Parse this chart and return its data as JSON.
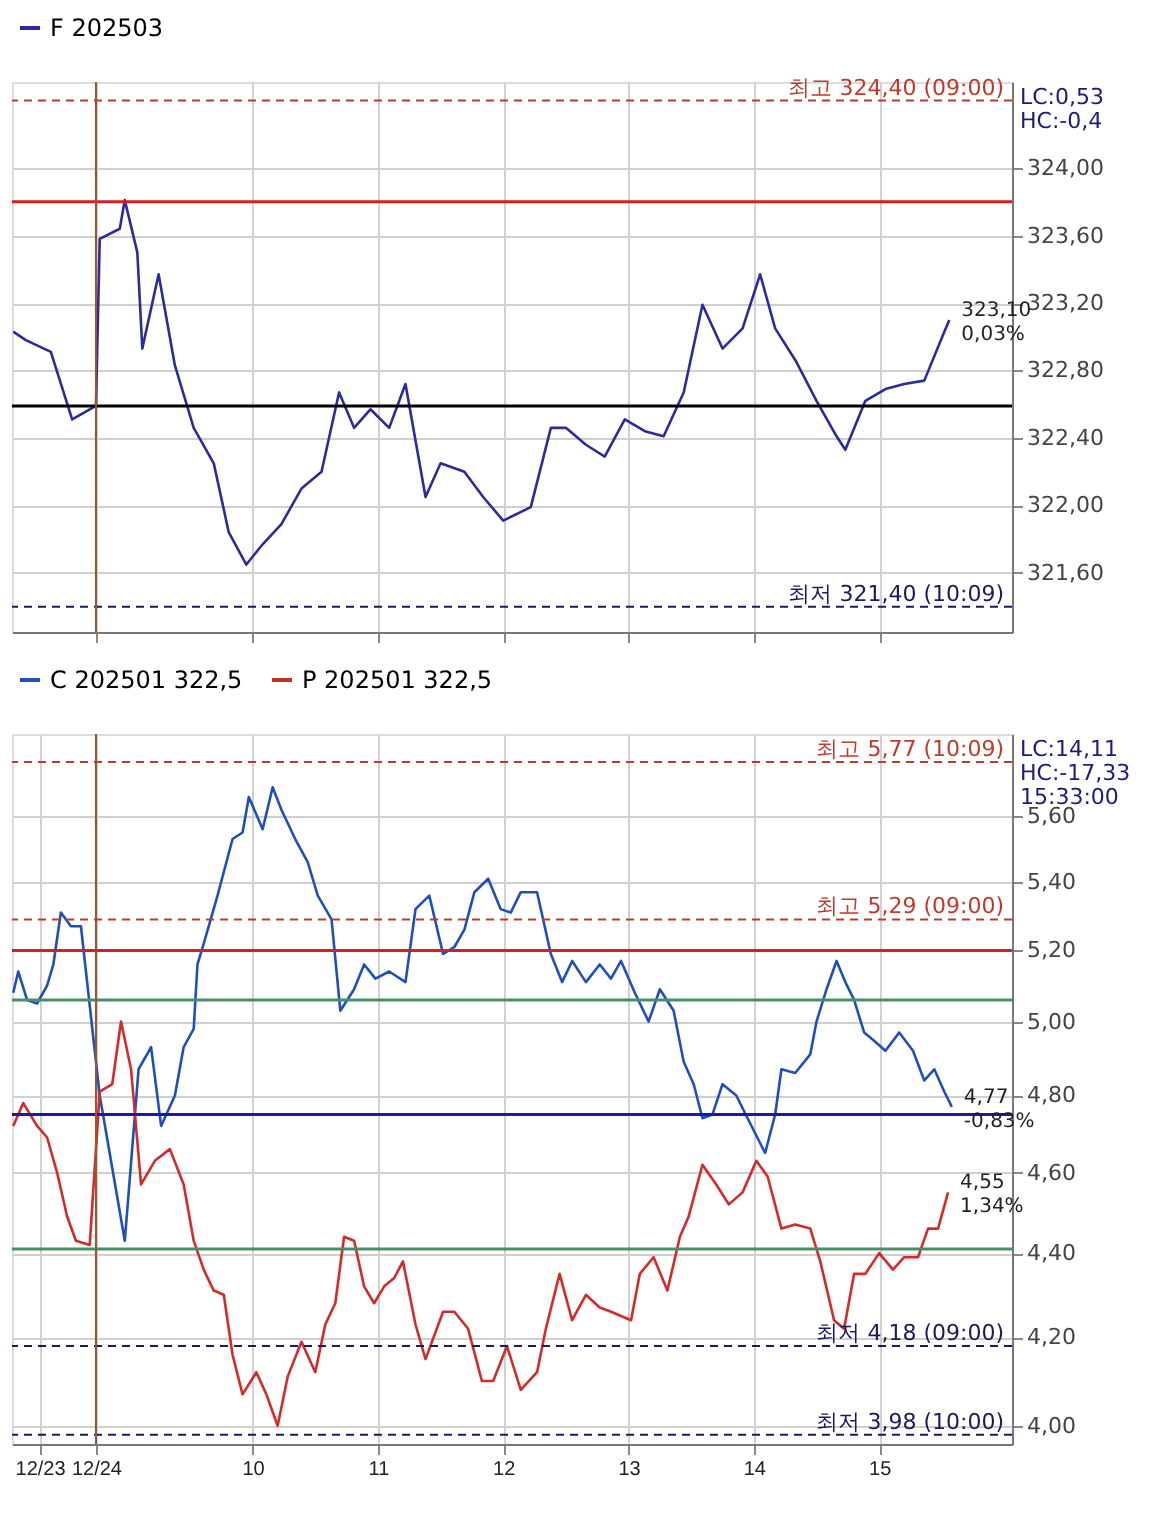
{
  "chart_data": [
    {
      "type": "line",
      "xlim": [
        8.08,
        16.06
      ],
      "xticks": [
        {
          "value": 8.75,
          "label": null
        },
        {
          "value": 10,
          "label": null
        },
        {
          "value": 11,
          "label": null
        },
        {
          "value": 12,
          "label": null
        },
        {
          "value": 13,
          "label": null
        },
        {
          "value": 14,
          "label": null
        },
        {
          "value": 15,
          "label": null
        }
      ],
      "ylim": [
        321.25,
        324.51
      ],
      "yticks": [
        {
          "value": 321.6,
          "label": "321,60"
        },
        {
          "value": 322.0,
          "label": "322,00"
        },
        {
          "value": 322.4,
          "label": "322,40"
        },
        {
          "value": 322.8,
          "label": "322,80"
        },
        {
          "value": 323.2,
          "label": "323,20"
        },
        {
          "value": 323.6,
          "label": "323,60"
        },
        {
          "value": 324.0,
          "label": "324,00"
        }
      ],
      "grid": true,
      "legend": "top left",
      "tick_labels": "y",
      "series": [
        {
          "name": "F 202503",
          "color": "#2b2b9f",
          "x": [
            8.09,
            8.19,
            8.39,
            8.56,
            8.75,
            8.78,
            8.94,
            8.98,
            9.08,
            9.12,
            9.25,
            9.38,
            9.53,
            9.69,
            9.81,
            9.95,
            10.08,
            10.23,
            10.39,
            10.55,
            10.69,
            10.81,
            10.94,
            11.09,
            11.22,
            11.38,
            11.5,
            11.69,
            11.84,
            12.0,
            12.22,
            12.38,
            12.5,
            12.66,
            12.81,
            12.97,
            13.13,
            13.28,
            13.44,
            13.59,
            13.75,
            13.91,
            14.05,
            14.17,
            14.34,
            14.5,
            14.66,
            14.73,
            14.89,
            15.05,
            15.2,
            15.36,
            15.52,
            15.56
          ],
          "values": [
            323.03,
            322.98,
            322.91,
            322.51,
            322.59,
            323.58,
            323.64,
            323.81,
            323.5,
            322.93,
            323.37,
            322.83,
            322.46,
            322.25,
            321.84,
            321.65,
            321.77,
            321.89,
            322.1,
            322.2,
            322.67,
            322.46,
            322.57,
            322.46,
            322.72,
            322.05,
            322.25,
            322.2,
            322.05,
            321.91,
            321.99,
            322.46,
            322.46,
            322.36,
            322.29,
            322.51,
            322.44,
            322.41,
            322.67,
            323.19,
            322.93,
            323.05,
            323.37,
            323.05,
            322.85,
            322.62,
            322.41,
            322.33,
            322.62,
            322.69,
            322.72,
            322.74,
            323.03,
            323.1
          ]
        }
      ],
      "ref_lines": [
        {
          "axis": "y",
          "value": 324.4,
          "label": "최고 324,40 (09:00)",
          "color": "#c0392b",
          "line_style": "dashed"
        },
        {
          "axis": "y",
          "value": 323.8,
          "color": "#d42020"
        },
        {
          "axis": "y",
          "value": 322.59,
          "color": "#000000"
        },
        {
          "axis": "y",
          "value": 321.4,
          "label": "최저 321,40 (10:09)",
          "color": "#1a1a60",
          "line_style": "dashed"
        },
        {
          "axis": "x",
          "value": 8.75,
          "color": "#a0522d"
        }
      ],
      "annotations": [
        "LC:0,53",
        "HC:-0,4",
        {
          "text": "323,10",
          "x": 15.56,
          "y": 323.1
        },
        {
          "text": "0,03%",
          "x": 15.56,
          "y": 323.1
        }
      ]
    },
    {
      "type": "line",
      "xlim": [
        8.08,
        16.06
      ],
      "xticks": [
        {
          "value": 8.3,
          "label": "12/23"
        },
        {
          "value": 8.75,
          "label": "12/24"
        },
        10,
        11,
        12,
        13,
        14,
        15
      ],
      "ylim": [
        3.96,
        5.86
      ],
      "log": "y",
      "yticks": [
        {
          "value": 4.0,
          "label": "4,00"
        },
        {
          "value": 4.2,
          "label": "4,20"
        },
        {
          "value": 4.4,
          "label": "4,40"
        },
        {
          "value": 4.6,
          "label": "4,60"
        },
        {
          "value": 4.8,
          "label": "4,80"
        },
        {
          "value": 5.0,
          "label": "5,00"
        },
        {
          "value": 5.2,
          "label": "5,20"
        },
        {
          "value": 5.4,
          "label": "5,40"
        },
        {
          "value": 5.6,
          "label": "5,60"
        }
      ],
      "grid": true,
      "legend": "top left",
      "series": [
        {
          "name": "C 202501 322,5",
          "color": "#1f4fbf",
          "x": [
            8.09,
            8.13,
            8.2,
            8.28,
            8.36,
            8.41,
            8.47,
            8.55,
            8.63,
            8.78,
            8.98,
            9.09,
            9.19,
            9.27,
            9.38,
            9.45,
            9.53,
            9.56,
            9.61,
            9.72,
            9.84,
            9.92,
            9.97,
            10.08,
            10.16,
            10.23,
            10.34,
            10.44,
            10.52,
            10.63,
            10.7,
            10.81,
            10.89,
            10.98,
            11.09,
            11.22,
            11.3,
            11.41,
            11.52,
            11.61,
            11.69,
            11.77,
            11.88,
            11.98,
            12.06,
            12.14,
            12.27,
            12.38,
            12.47,
            12.55,
            12.66,
            12.77,
            12.86,
            12.94,
            13.05,
            13.16,
            13.25,
            13.36,
            13.44,
            13.52,
            13.59,
            13.67,
            13.75,
            13.86,
            13.95,
            14.09,
            14.17,
            14.22,
            14.33,
            14.45,
            14.5,
            14.58,
            14.66,
            14.73,
            14.8,
            14.88,
            14.95,
            15.05,
            15.16,
            15.27,
            15.36,
            15.44,
            15.52,
            15.58
          ],
          "values": [
            5.08,
            5.14,
            5.06,
            5.05,
            5.1,
            5.16,
            5.31,
            5.27,
            5.27,
            4.8,
            4.43,
            4.87,
            4.93,
            4.72,
            4.8,
            4.93,
            4.98,
            5.16,
            5.22,
            5.36,
            5.53,
            5.55,
            5.66,
            5.56,
            5.69,
            5.62,
            5.53,
            5.46,
            5.36,
            5.29,
            5.03,
            5.09,
            5.16,
            5.12,
            5.14,
            5.11,
            5.32,
            5.36,
            5.19,
            5.21,
            5.26,
            5.37,
            5.41,
            5.32,
            5.31,
            5.37,
            5.37,
            5.19,
            5.11,
            5.17,
            5.11,
            5.16,
            5.12,
            5.17,
            5.08,
            5.0,
            5.09,
            5.03,
            4.89,
            4.83,
            4.74,
            4.75,
            4.83,
            4.8,
            4.74,
            4.65,
            4.75,
            4.87,
            4.86,
            4.91,
            5.0,
            5.09,
            5.17,
            5.11,
            5.06,
            4.97,
            4.95,
            4.92,
            4.97,
            4.92,
            4.84,
            4.87,
            4.81,
            4.77
          ]
        },
        {
          "name": "P 202501 322,5",
          "color": "#d42a2a",
          "x": [
            8.09,
            8.17,
            8.28,
            8.36,
            8.44,
            8.52,
            8.59,
            8.7,
            8.78,
            8.88,
            8.95,
            9.03,
            9.11,
            9.22,
            9.34,
            9.45,
            9.53,
            9.61,
            9.69,
            9.77,
            9.84,
            9.92,
            10.03,
            10.11,
            10.2,
            10.28,
            10.39,
            10.5,
            10.58,
            10.66,
            10.73,
            10.81,
            10.89,
            10.97,
            11.05,
            11.13,
            11.2,
            11.3,
            11.38,
            11.52,
            11.61,
            11.72,
            11.83,
            11.92,
            12.03,
            12.14,
            12.27,
            12.34,
            12.45,
            12.55,
            12.66,
            12.77,
            12.86,
            13.02,
            13.09,
            13.2,
            13.31,
            13.41,
            13.48,
            13.59,
            13.7,
            13.8,
            13.91,
            14.02,
            14.11,
            14.22,
            14.33,
            14.45,
            14.53,
            14.64,
            14.72,
            14.8,
            14.89,
            15.0,
            15.11,
            15.2,
            15.31,
            15.39,
            15.47,
            15.55
          ],
          "values": [
            4.72,
            4.78,
            4.72,
            4.69,
            4.6,
            4.49,
            4.43,
            4.42,
            4.81,
            4.83,
            5.0,
            4.87,
            4.57,
            4.63,
            4.66,
            4.57,
            4.43,
            4.36,
            4.31,
            4.3,
            4.16,
            4.07,
            4.12,
            4.07,
            4.0,
            4.11,
            4.19,
            4.12,
            4.23,
            4.28,
            4.44,
            4.43,
            4.32,
            4.28,
            4.32,
            4.34,
            4.38,
            4.23,
            4.15,
            4.26,
            4.26,
            4.22,
            4.1,
            4.1,
            4.18,
            4.08,
            4.12,
            4.22,
            4.35,
            4.24,
            4.3,
            4.27,
            4.26,
            4.24,
            4.35,
            4.39,
            4.31,
            4.44,
            4.49,
            4.62,
            4.57,
            4.52,
            4.55,
            4.63,
            4.59,
            4.46,
            4.47,
            4.46,
            4.38,
            4.24,
            4.22,
            4.35,
            4.35,
            4.4,
            4.36,
            4.39,
            4.39,
            4.46,
            4.46,
            4.55
          ]
        }
      ],
      "ref_lines": [
        {
          "axis": "y",
          "value": 5.77,
          "label": "최고 5,77 (10:09)",
          "color": "#c0392b",
          "line_style": "dashed"
        },
        {
          "axis": "y",
          "value": 5.29,
          "label": "최고 5,29 (09:00)",
          "color": "#c0392b",
          "line_style": "dashed"
        },
        {
          "axis": "y",
          "value": 5.2,
          "color": "#d42020"
        },
        {
          "axis": "y",
          "value": 5.06,
          "color": "#4a8f6a"
        },
        {
          "axis": "y",
          "value": 4.75,
          "color": "#1a1aa0"
        },
        {
          "axis": "y",
          "value": 4.41,
          "color": "#4a8f6a"
        },
        {
          "axis": "y",
          "value": 4.18,
          "label": "최저 4,18 (09:00)",
          "color": "#1a1a60",
          "line_style": "dashed"
        },
        {
          "axis": "y",
          "value": 3.98,
          "label": "최저 3,98 (10:00)",
          "color": "#1a1a60",
          "line_style": "dashed"
        },
        {
          "axis": "x",
          "value": 8.75,
          "color": "#a0522d"
        }
      ],
      "annotations": [
        "LC:14,11",
        "HC:-17,33",
        "15:33:00",
        {
          "text": "4,77",
          "x": 15.58,
          "y": 4.77
        },
        {
          "text": "-0,83%",
          "x": 15.58,
          "y": 4.77
        },
        {
          "text": "4,55",
          "x": 15.55,
          "y": 4.55
        },
        {
          "text": "1,34%",
          "x": 15.55,
          "y": 4.55
        }
      ]
    }
  ]
}
